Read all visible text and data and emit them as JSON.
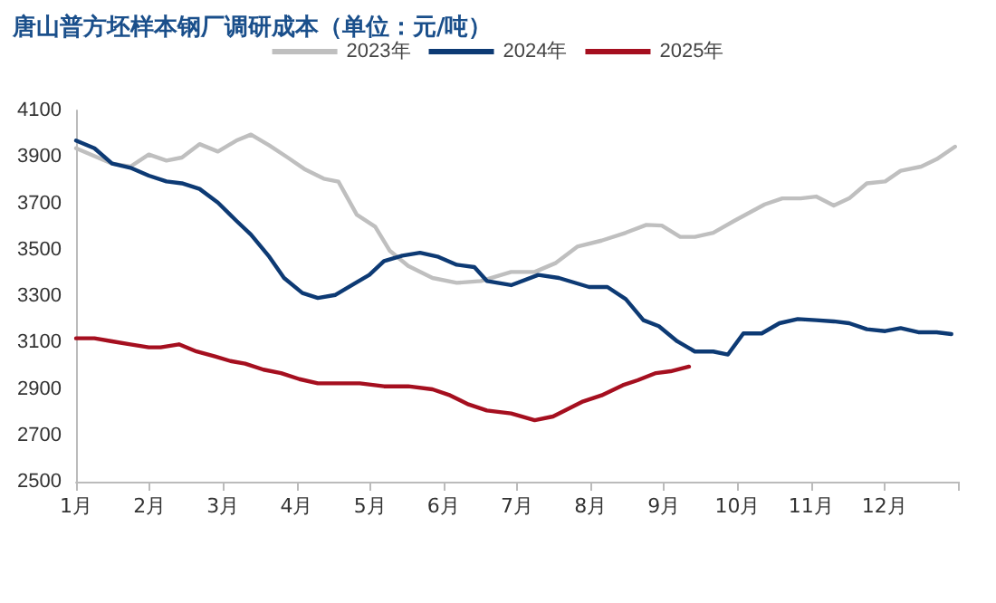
{
  "chart_data": {
    "type": "line",
    "title": "唐山普方坯样本钢厂调研成本（单位：元/吨）",
    "xlim": [
      1,
      13
    ],
    "xticks": [
      {
        "value": 1,
        "label": "1月"
      },
      {
        "value": 2,
        "label": "2月"
      },
      {
        "value": 3,
        "label": "3月"
      },
      {
        "value": 4,
        "label": "4月"
      },
      {
        "value": 5,
        "label": "5月"
      },
      {
        "value": 6,
        "label": "6月"
      },
      {
        "value": 7,
        "label": "7月"
      },
      {
        "value": 8,
        "label": "8月"
      },
      {
        "value": 9,
        "label": "9月"
      },
      {
        "value": 10,
        "label": "10月"
      },
      {
        "value": 11,
        "label": "11月"
      },
      {
        "value": 12,
        "label": "12月"
      },
      {
        "value": 13,
        "label": null
      }
    ],
    "ylim": [
      2500,
      4100
    ],
    "yticks": [
      2500,
      2700,
      2900,
      3100,
      3300,
      3500,
      3700,
      3900,
      4100
    ],
    "grid": false,
    "legend": "top",
    "marker": "none",
    "line_style": "solid",
    "series": [
      {
        "name": "2023年",
        "color": "#bfbfbf",
        "x": [
          1.0,
          1.49,
          1.74,
          1.99,
          2.23,
          2.44,
          2.68,
          2.93,
          3.18,
          3.38,
          3.63,
          3.88,
          4.12,
          4.37,
          4.57,
          4.82,
          5.07,
          5.27,
          5.52,
          5.85,
          6.18,
          6.51,
          6.92,
          7.24,
          7.53,
          7.82,
          8.15,
          8.48,
          8.76,
          8.97,
          9.22,
          9.42,
          9.67,
          9.96,
          10.37,
          10.61,
          10.86,
          11.07,
          11.31,
          11.52,
          11.76,
          12.01,
          12.22,
          12.5,
          12.71,
          12.96
        ],
        "values": [
          3937,
          3871,
          3858,
          3910,
          3884,
          3897,
          3955,
          3923,
          3970,
          3996,
          3949,
          3897,
          3845,
          3806,
          3793,
          3651,
          3599,
          3495,
          3430,
          3378,
          3357,
          3365,
          3404,
          3404,
          3443,
          3513,
          3539,
          3573,
          3607,
          3604,
          3555,
          3555,
          3573,
          3625,
          3695,
          3721,
          3721,
          3729,
          3690,
          3721,
          3786,
          3794,
          3840,
          3858,
          3890,
          3944
        ]
      },
      {
        "name": "2024年",
        "color": "#0d3a74",
        "x": [
          1.0,
          1.25,
          1.49,
          1.74,
          1.99,
          2.23,
          2.44,
          2.68,
          2.93,
          3.18,
          3.38,
          3.63,
          3.83,
          4.08,
          4.29,
          4.53,
          4.78,
          4.99,
          5.19,
          5.44,
          5.68,
          5.93,
          6.18,
          6.42,
          6.59,
          6.92,
          7.29,
          7.57,
          7.98,
          8.23,
          8.48,
          8.72,
          8.93,
          9.18,
          9.42,
          9.67,
          9.87,
          10.08,
          10.33,
          10.57,
          10.82,
          11.07,
          11.31,
          11.52,
          11.76,
          12.01,
          12.22,
          12.46,
          12.71,
          12.91
        ],
        "values": [
          3970,
          3937,
          3871,
          3853,
          3819,
          3794,
          3786,
          3762,
          3703,
          3625,
          3565,
          3469,
          3378,
          3313,
          3292,
          3305,
          3352,
          3391,
          3451,
          3474,
          3487,
          3469,
          3435,
          3425,
          3365,
          3347,
          3391,
          3378,
          3339,
          3339,
          3287,
          3196,
          3170,
          3105,
          3061,
          3061,
          3048,
          3139,
          3139,
          3183,
          3201,
          3196,
          3191,
          3183,
          3157,
          3149,
          3162,
          3144,
          3144,
          3136
        ]
      },
      {
        "name": "2025年",
        "color": "#a50f1f",
        "x": [
          1.0,
          1.25,
          1.49,
          1.74,
          1.99,
          2.15,
          2.4,
          2.64,
          2.89,
          3.1,
          3.3,
          3.55,
          3.79,
          4.04,
          4.29,
          4.53,
          4.86,
          5.19,
          5.52,
          5.85,
          6.09,
          6.34,
          6.59,
          6.92,
          7.24,
          7.49,
          7.9,
          8.15,
          8.44,
          8.64,
          8.89,
          9.09,
          9.34
        ],
        "values": [
          3118,
          3118,
          3105,
          3092,
          3079,
          3079,
          3092,
          3061,
          3040,
          3020,
          3009,
          2983,
          2968,
          2942,
          2924,
          2924,
          2924,
          2911,
          2911,
          2898,
          2872,
          2833,
          2807,
          2794,
          2765,
          2781,
          2846,
          2872,
          2916,
          2937,
          2968,
          2976,
          2996
        ]
      }
    ]
  }
}
